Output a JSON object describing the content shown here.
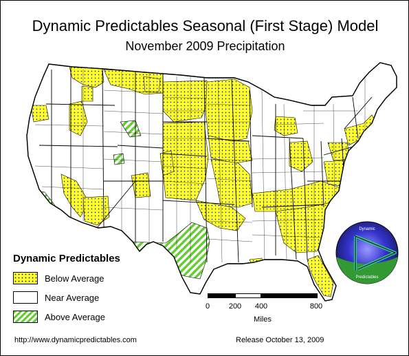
{
  "header": {
    "title": "Dynamic Predictables Seasonal (First Stage) Model",
    "subtitle": "November 2009 Precipitation"
  },
  "legend": {
    "title": "Dynamic Predictables",
    "items": [
      {
        "label": "Below Average",
        "pattern": "yellow-dotted"
      },
      {
        "label": "Near Average",
        "pattern": "white"
      },
      {
        "label": "Above Average",
        "pattern": "green-striped"
      }
    ]
  },
  "scale": {
    "ticks": [
      "0",
      "200",
      "400",
      "800"
    ],
    "units": "Miles"
  },
  "logo": {
    "text_top": "Dynamic",
    "text_bottom": "Predictables"
  },
  "footer": {
    "url": "http://www.dynamicpredictables.com",
    "release": "Release October 13, 2009"
  },
  "colors": {
    "below_average": "#ffff33",
    "near_average": "#ffffff",
    "above_average": "#66cc33",
    "outline": "#000000",
    "logo_blue": "#3333cc",
    "logo_green": "#339933"
  }
}
